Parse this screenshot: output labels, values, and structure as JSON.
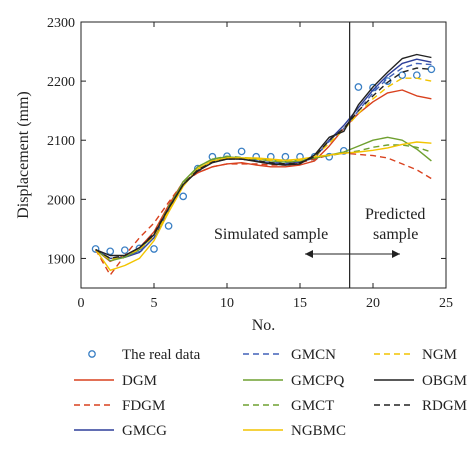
{
  "chart_data": {
    "type": "line",
    "xlabel": "No.",
    "ylabel": "Displacement (mm)",
    "xlim": [
      0,
      25
    ],
    "ylim": [
      1850,
      2300
    ],
    "xticks": [
      0,
      5,
      10,
      15,
      20,
      25
    ],
    "yticks": [
      1900,
      2000,
      2100,
      2200,
      2300
    ],
    "divider_x": 18.4,
    "annotations": {
      "simulated": "Simulated sample",
      "predicted_line1": "Predicted",
      "predicted_line2": "sample"
    },
    "grid": false,
    "legend_position": "bottom",
    "x": [
      1,
      2,
      3,
      4,
      5,
      6,
      7,
      8,
      9,
      10,
      11,
      12,
      13,
      14,
      15,
      16,
      17,
      18,
      19,
      20,
      21,
      22,
      23,
      24
    ],
    "series": [
      {
        "name": "The real data",
        "style": "marker",
        "color": "#3a7fc4",
        "values": [
          1916,
          1912,
          1914,
          1917,
          1916,
          1955,
          2005,
          2052,
          2072,
          2073,
          2081,
          2072,
          2072,
          2072,
          2072,
          2072,
          2072,
          2082,
          2190,
          2189,
          2200,
          2210,
          2210,
          2220
        ]
      },
      {
        "name": "DGM",
        "style": "solid",
        "color": "#d9411e",
        "values": [
          1915,
          1895,
          1905,
          1918,
          1945,
          1990,
          2030,
          2045,
          2055,
          2060,
          2062,
          2058,
          2055,
          2055,
          2058,
          2065,
          2090,
          2120,
          2145,
          2165,
          2180,
          2185,
          2175,
          2170
        ]
      },
      {
        "name": "FDGM",
        "style": "dashed",
        "color": "#d9411e",
        "values": [
          1915,
          1872,
          1905,
          1935,
          1960,
          1995,
          2028,
          2045,
          2055,
          2060,
          2060,
          2060,
          2058,
          2058,
          2062,
          2068,
          2075,
          2078,
          2076,
          2074,
          2070,
          2060,
          2050,
          2035
        ]
      },
      {
        "name": "GMCG",
        "style": "solid",
        "color": "#2e3f9a",
        "values": [
          1915,
          1900,
          1902,
          1910,
          1935,
          1980,
          2025,
          2050,
          2065,
          2070,
          2068,
          2065,
          2062,
          2060,
          2063,
          2070,
          2100,
          2125,
          2155,
          2185,
          2210,
          2230,
          2237,
          2232
        ]
      },
      {
        "name": "GMCN",
        "style": "dashed",
        "color": "#4060b8",
        "values": [
          1915,
          1898,
          1904,
          1912,
          1935,
          1982,
          2025,
          2050,
          2065,
          2068,
          2068,
          2065,
          2062,
          2062,
          2064,
          2070,
          2098,
          2120,
          2150,
          2180,
          2205,
          2222,
          2230,
          2228
        ]
      },
      {
        "name": "GMCPQ",
        "style": "solid",
        "color": "#6fa030",
        "values": [
          1915,
          1896,
          1902,
          1915,
          1940,
          1985,
          2030,
          2055,
          2068,
          2072,
          2070,
          2068,
          2065,
          2063,
          2065,
          2070,
          2075,
          2080,
          2090,
          2100,
          2105,
          2100,
          2085,
          2065
        ]
      },
      {
        "name": "GMCT",
        "style": "dashed",
        "color": "#6fa030",
        "values": [
          1915,
          1898,
          1905,
          1915,
          1940,
          1988,
          2028,
          2055,
          2068,
          2073,
          2071,
          2069,
          2066,
          2064,
          2066,
          2070,
          2074,
          2078,
          2082,
          2088,
          2092,
          2092,
          2088,
          2080
        ]
      },
      {
        "name": "NGBMC",
        "style": "solid",
        "color": "#f2c400",
        "values": [
          1915,
          1880,
          1888,
          1900,
          1930,
          1978,
          2022,
          2052,
          2065,
          2070,
          2070,
          2070,
          2068,
          2066,
          2068,
          2072,
          2075,
          2078,
          2080,
          2083,
          2087,
          2093,
          2097,
          2095
        ]
      },
      {
        "name": "NGM",
        "style": "dashed",
        "color": "#f2c400",
        "values": [
          1915,
          1898,
          1905,
          1915,
          1938,
          1980,
          2025,
          2050,
          2065,
          2070,
          2070,
          2068,
          2066,
          2065,
          2066,
          2072,
          2095,
          2118,
          2145,
          2170,
          2190,
          2205,
          2205,
          2200
        ]
      },
      {
        "name": "OBGM",
        "style": "solid",
        "color": "#222222",
        "values": [
          1915,
          1905,
          1905,
          1918,
          1940,
          1985,
          2025,
          2048,
          2062,
          2068,
          2068,
          2064,
          2060,
          2058,
          2060,
          2075,
          2105,
          2115,
          2160,
          2190,
          2215,
          2238,
          2245,
          2240
        ]
      },
      {
        "name": "RDGM",
        "style": "dashed",
        "color": "#222222",
        "values": [
          1915,
          1900,
          1905,
          1918,
          1942,
          1985,
          2025,
          2050,
          2063,
          2068,
          2068,
          2065,
          2062,
          2060,
          2062,
          2072,
          2100,
          2120,
          2150,
          2175,
          2198,
          2215,
          2222,
          2220
        ]
      }
    ]
  }
}
